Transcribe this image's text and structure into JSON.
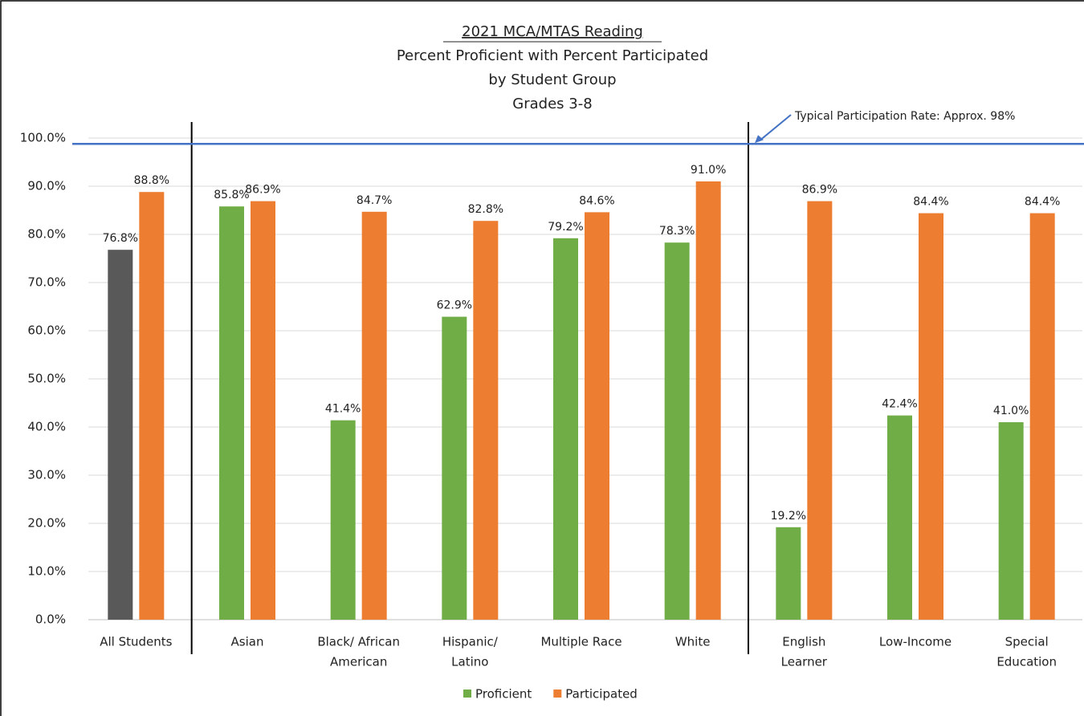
{
  "chart_data": {
    "type": "bar",
    "title": "2021 MCA/MTAS Reading",
    "subtitle": [
      "Percent Proficient with Percent Participated",
      "by Student Group",
      "Grades 3-8"
    ],
    "categories": [
      [
        "All Students"
      ],
      [
        "Asian"
      ],
      [
        "Black/ African",
        "American"
      ],
      [
        "Hispanic/",
        "Latino"
      ],
      [
        "Multiple Race"
      ],
      [
        "White"
      ],
      [
        "English",
        "Learner"
      ],
      [
        "Low-Income"
      ],
      [
        "Special",
        "Education"
      ]
    ],
    "series": [
      {
        "name": "Proficient",
        "color": "#70ad47",
        "point_colors": [
          "#595959",
          "#70ad47",
          "#70ad47",
          "#70ad47",
          "#70ad47",
          "#70ad47",
          "#70ad47",
          "#70ad47",
          "#70ad47"
        ],
        "values": [
          76.8,
          85.8,
          41.4,
          62.9,
          79.2,
          78.3,
          19.2,
          42.4,
          41.0
        ],
        "value_labels": [
          "76.8%",
          "85.8%",
          "41.4%",
          "62.9%",
          "79.2%",
          "78.3%",
          "19.2%",
          "42.4%",
          "41.0%"
        ]
      },
      {
        "name": "Participated",
        "color": "#ed7d31",
        "values": [
          88.8,
          86.9,
          84.7,
          82.8,
          84.6,
          91.0,
          86.9,
          84.4,
          84.4
        ],
        "value_labels": [
          "88.8%",
          "86.9%",
          "84.7%",
          "82.8%",
          "84.6%",
          "91.0%",
          "86.9%",
          "84.4%",
          "84.4%"
        ]
      }
    ],
    "reference_line": {
      "value": 98.8,
      "color": "#4472c4",
      "label": "Typical Participation Rate: Approx. 98%"
    },
    "ylim": [
      0,
      100
    ],
    "yticks": [
      {
        "value": 0,
        "label": "0.0%"
      },
      {
        "value": 10,
        "label": "10.0%"
      },
      {
        "value": 20,
        "label": "20.0%"
      },
      {
        "value": 30,
        "label": "30.0%"
      },
      {
        "value": 40,
        "label": "40.0%"
      },
      {
        "value": 50,
        "label": "50.0%"
      },
      {
        "value": 60,
        "label": "60.0%"
      },
      {
        "value": 70,
        "label": "70.0%"
      },
      {
        "value": 80,
        "label": "80.0%"
      },
      {
        "value": 90,
        "label": "90.0%"
      },
      {
        "value": 100,
        "label": "100.0%"
      }
    ],
    "grid": true,
    "legend": "bottom"
  }
}
